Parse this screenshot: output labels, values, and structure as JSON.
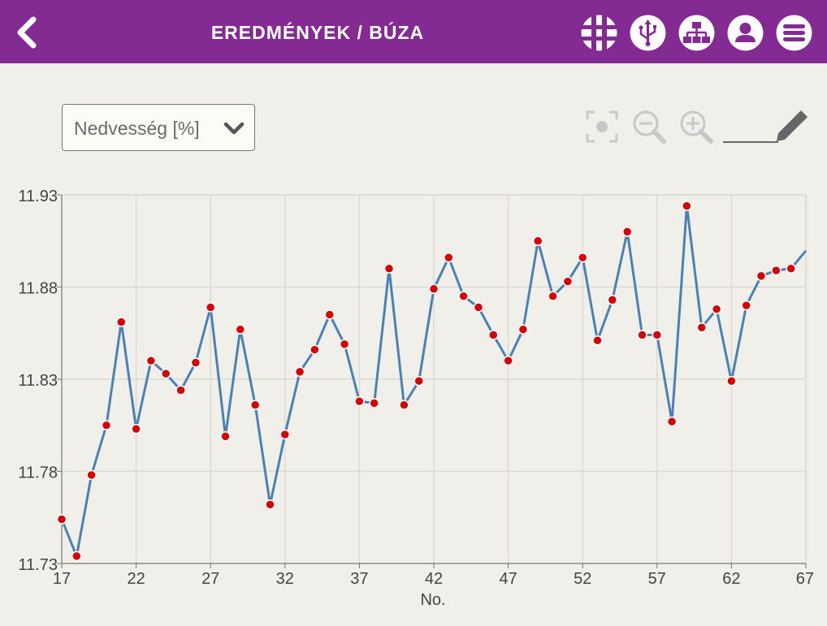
{
  "header": {
    "title": "EREDMÉNYEK / BÚZA",
    "background": "#832a93",
    "icons": [
      "back-arrow-icon",
      "grid-globe-icon",
      "usb-icon",
      "network-icon",
      "user-icon",
      "menu-icon"
    ]
  },
  "selector": {
    "value": "Nedvesség [%]",
    "icon": "chevron-down-icon"
  },
  "toolbar": {
    "icons": [
      "focus-icon",
      "zoom-out-icon",
      "zoom-in-icon",
      "pencil-icon"
    ]
  },
  "chart_data": {
    "type": "line",
    "xlabel": "No.",
    "ylabel": "",
    "xlim": [
      17,
      67
    ],
    "ylim": [
      11.73,
      11.93
    ],
    "xticks": [
      17,
      22,
      27,
      32,
      37,
      42,
      47,
      52,
      57,
      62,
      67
    ],
    "yticks": [
      11.73,
      11.78,
      11.83,
      11.88,
      11.93
    ],
    "grid": true,
    "line_color": "#4a82b4",
    "marker_color": "#d60000",
    "series": [
      {
        "x": [
          17,
          18,
          19,
          20,
          21,
          22,
          23,
          24,
          25,
          26,
          27,
          28,
          29,
          30,
          31,
          32,
          33,
          34,
          35,
          36,
          37,
          38,
          39,
          40,
          41,
          42,
          43,
          44,
          45,
          46,
          47,
          48,
          49,
          50,
          51,
          52,
          53,
          54,
          55,
          56,
          57,
          58,
          59,
          60,
          61,
          62,
          63,
          64,
          65,
          66
        ],
        "values": [
          11.754,
          11.734,
          11.778,
          11.805,
          11.861,
          11.803,
          11.84,
          11.833,
          11.824,
          11.839,
          11.869,
          11.799,
          11.857,
          11.816,
          11.762,
          11.8,
          11.834,
          11.846,
          11.865,
          11.849,
          11.818,
          11.817,
          11.89,
          11.816,
          11.829,
          11.879,
          11.896,
          11.875,
          11.869,
          11.854,
          11.84,
          11.857,
          11.905,
          11.875,
          11.883,
          11.896,
          11.851,
          11.873,
          11.91,
          11.854,
          11.854,
          11.807,
          11.924,
          11.858,
          11.868,
          11.829,
          11.87,
          11.886,
          11.889,
          11.89
        ]
      }
    ]
  }
}
